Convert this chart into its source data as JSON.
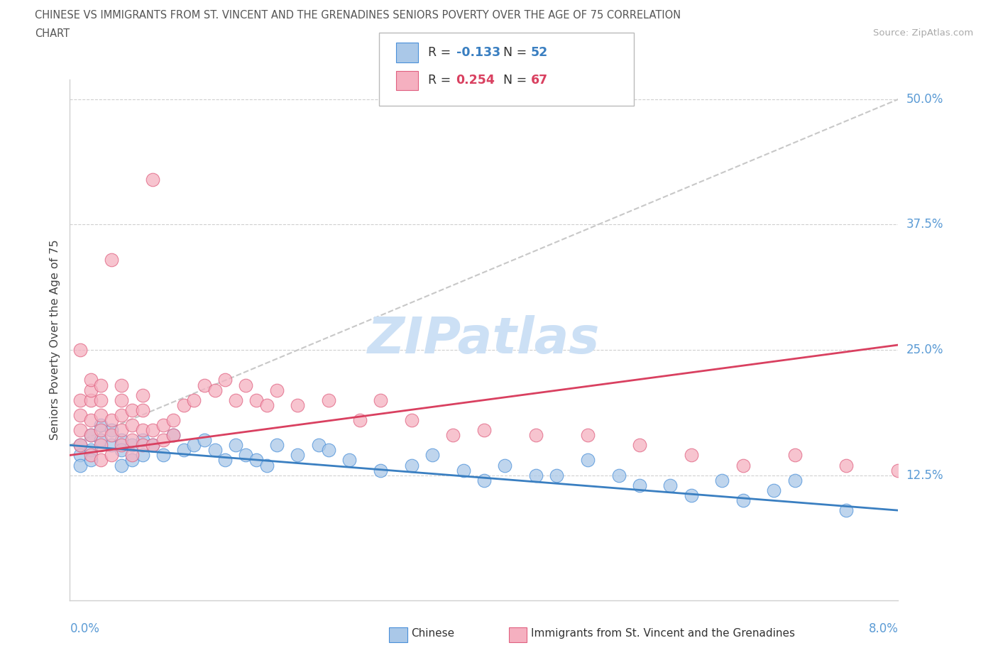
{
  "title_line1": "CHINESE VS IMMIGRANTS FROM ST. VINCENT AND THE GRENADINES SENIORS POVERTY OVER THE AGE OF 75 CORRELATION",
  "title_line2": "CHART",
  "source": "Source: ZipAtlas.com",
  "ylabel": "Seniors Poverty Over the Age of 75",
  "R1": -0.133,
  "N1": 52,
  "R2": 0.254,
  "N2": 67,
  "color_blue_fill": "#aac8e8",
  "color_blue_edge": "#4a90d9",
  "color_pink_fill": "#f5b0c0",
  "color_pink_edge": "#e06080",
  "color_trend_blue": "#3a7fc1",
  "color_trend_pink": "#d94060",
  "color_trend_gray": "#c8c8c8",
  "color_grid": "#d0d0d0",
  "color_axis_label": "#5b9bd5",
  "color_title": "#555555",
  "color_source": "#aaaaaa",
  "watermark_color": "#cce0f5",
  "watermark_text": "ZIPatlas",
  "xlim_max": 0.08,
  "ylim_max": 0.52,
  "ytick_vals": [
    0.125,
    0.25,
    0.375,
    0.5
  ],
  "ytick_labels": [
    "12.5%",
    "25.0%",
    "37.5%",
    "50.0%"
  ],
  "blue_trend": [
    0.155,
    0.09
  ],
  "pink_trend": [
    0.145,
    0.255
  ],
  "gray_trend": [
    0.155,
    0.5
  ],
  "legend1": "Chinese",
  "legend2": "Immigrants from St. Vincent and the Grenadines",
  "chinese_x": [
    0.001,
    0.001,
    0.001,
    0.002,
    0.002,
    0.002,
    0.003,
    0.003,
    0.004,
    0.004,
    0.005,
    0.005,
    0.005,
    0.006,
    0.006,
    0.007,
    0.007,
    0.008,
    0.009,
    0.01,
    0.011,
    0.012,
    0.013,
    0.014,
    0.015,
    0.016,
    0.017,
    0.018,
    0.019,
    0.02,
    0.022,
    0.024,
    0.025,
    0.027,
    0.03,
    0.033,
    0.035,
    0.038,
    0.04,
    0.042,
    0.045,
    0.047,
    0.05,
    0.053,
    0.055,
    0.058,
    0.06,
    0.063,
    0.065,
    0.068,
    0.07,
    0.075
  ],
  "chinese_y": [
    0.155,
    0.145,
    0.135,
    0.165,
    0.15,
    0.14,
    0.175,
    0.16,
    0.17,
    0.155,
    0.16,
    0.15,
    0.135,
    0.155,
    0.14,
    0.16,
    0.145,
    0.155,
    0.145,
    0.165,
    0.15,
    0.155,
    0.16,
    0.15,
    0.14,
    0.155,
    0.145,
    0.14,
    0.135,
    0.155,
    0.145,
    0.155,
    0.15,
    0.14,
    0.13,
    0.135,
    0.145,
    0.13,
    0.12,
    0.135,
    0.125,
    0.125,
    0.14,
    0.125,
    0.115,
    0.115,
    0.105,
    0.12,
    0.1,
    0.11,
    0.12,
    0.09
  ],
  "svg_x": [
    0.001,
    0.001,
    0.001,
    0.001,
    0.001,
    0.002,
    0.002,
    0.002,
    0.002,
    0.002,
    0.002,
    0.003,
    0.003,
    0.003,
    0.003,
    0.003,
    0.003,
    0.004,
    0.004,
    0.004,
    0.004,
    0.005,
    0.005,
    0.005,
    0.005,
    0.005,
    0.006,
    0.006,
    0.006,
    0.006,
    0.007,
    0.007,
    0.007,
    0.007,
    0.008,
    0.008,
    0.008,
    0.009,
    0.009,
    0.01,
    0.01,
    0.011,
    0.012,
    0.013,
    0.014,
    0.015,
    0.016,
    0.017,
    0.018,
    0.019,
    0.02,
    0.022,
    0.025,
    0.028,
    0.03,
    0.033,
    0.037,
    0.04,
    0.045,
    0.05,
    0.055,
    0.06,
    0.065,
    0.07,
    0.075,
    0.08,
    0.085
  ],
  "svg_y": [
    0.155,
    0.17,
    0.185,
    0.2,
    0.25,
    0.145,
    0.165,
    0.18,
    0.2,
    0.21,
    0.22,
    0.14,
    0.155,
    0.17,
    0.185,
    0.2,
    0.215,
    0.145,
    0.165,
    0.18,
    0.34,
    0.155,
    0.17,
    0.185,
    0.2,
    0.215,
    0.145,
    0.16,
    0.175,
    0.19,
    0.155,
    0.17,
    0.19,
    0.205,
    0.155,
    0.17,
    0.42,
    0.16,
    0.175,
    0.165,
    0.18,
    0.195,
    0.2,
    0.215,
    0.21,
    0.22,
    0.2,
    0.215,
    0.2,
    0.195,
    0.21,
    0.195,
    0.2,
    0.18,
    0.2,
    0.18,
    0.165,
    0.17,
    0.165,
    0.165,
    0.155,
    0.145,
    0.135,
    0.145,
    0.135,
    0.13,
    0.13
  ]
}
